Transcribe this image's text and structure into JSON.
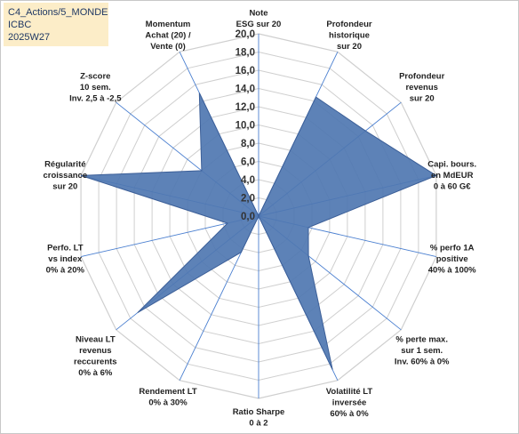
{
  "info": {
    "line1": "C4_Actions/5_MONDE",
    "line2": "ICBC",
    "line3": "2025W27"
  },
  "colors": {
    "fill": "#4f77b1",
    "stroke": "#3c5f98",
    "grid": "#cfcfcf",
    "spoke": "#4a7fd0",
    "box": "#fcedc8"
  },
  "chart_data": {
    "type": "radar",
    "range": [
      0,
      20
    ],
    "tick_step": 2,
    "tick_labels": [
      "0,0",
      "2,0",
      "4,0",
      "6,0",
      "8,0",
      "10,0",
      "12,0",
      "14,0",
      "16,0",
      "18,0",
      "20,0"
    ],
    "grid": true,
    "axes": [
      {
        "label": [
          "Note",
          "ESG sur 20"
        ],
        "value": 0
      },
      {
        "label": [
          "Profondeur",
          "historique",
          "sur 20"
        ],
        "value": 14.5
      },
      {
        "label": [
          "Profondeur",
          "revenus",
          "sur 20"
        ],
        "value": 15
      },
      {
        "label": [
          "Capi. bours.",
          "en MdEUR",
          "0 à 60 G€"
        ],
        "value": 20
      },
      {
        "label": [
          "% perfo 1A",
          "positive",
          "40% à 100%"
        ],
        "value": 5.6
      },
      {
        "label": [
          "% perte max.",
          "sur 1 sem.",
          "Inv. 60% à 0%"
        ],
        "value": 7
      },
      {
        "label": [
          "Volatilité LT",
          "inversée",
          "60% à 0%"
        ],
        "value": 18.7
      },
      {
        "label": [
          "Ratio Sharpe",
          "0 à 2"
        ],
        "value": 0
      },
      {
        "label": [
          "Rendement LT",
          "0% à 30%"
        ],
        "value": 4.4
      },
      {
        "label": [
          "Niveau LT",
          "revenus",
          "reccurents",
          "0% à 6%"
        ],
        "value": 17
      },
      {
        "label": [
          "Perfo. LT",
          "vs index",
          "0% à 20%"
        ],
        "value": 3.5
      },
      {
        "label": [
          "Régularité",
          "croissance",
          "sur 20"
        ],
        "value": 20
      },
      {
        "label": [
          "Z-score",
          "10 sem.",
          "Inv. 2,5 à -2,5"
        ],
        "value": 8
      },
      {
        "label": [
          "Momentum",
          "Achat (20) /",
          "Vente (0)"
        ],
        "value": 15
      }
    ]
  }
}
